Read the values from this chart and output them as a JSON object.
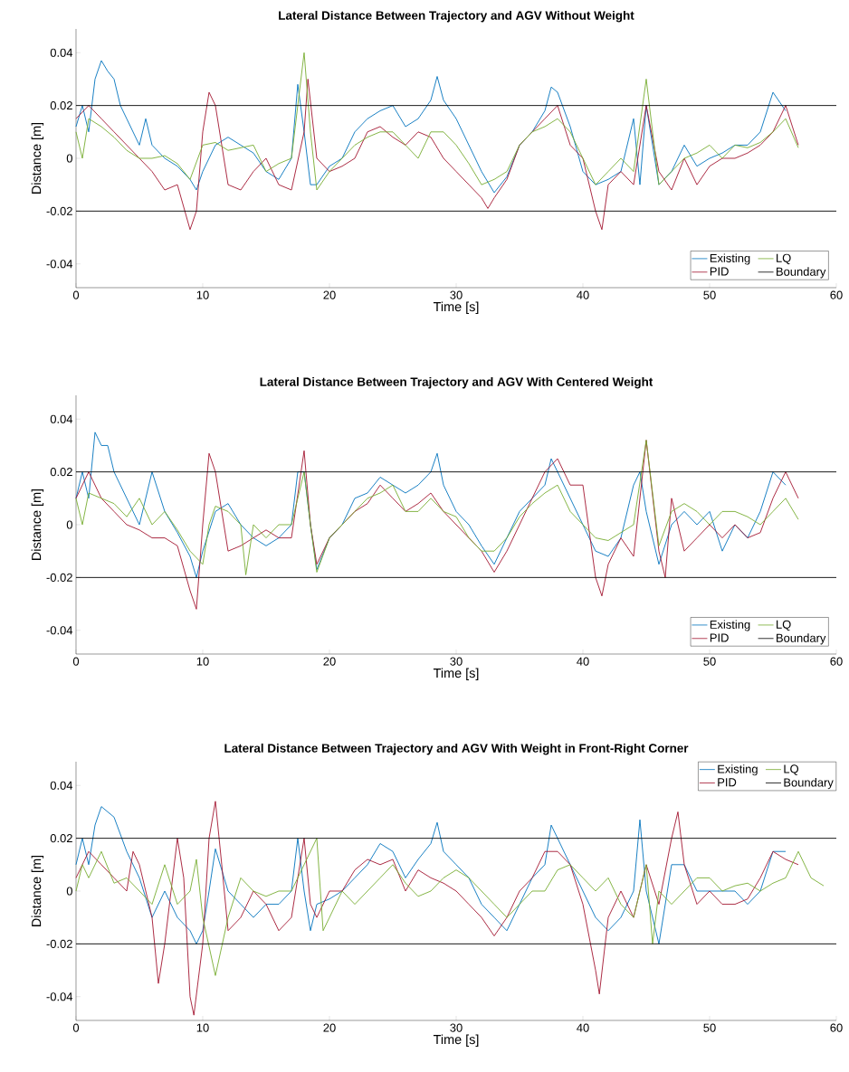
{
  "chart_data": [
    {
      "type": "line",
      "title": "Lateral Distance Between Trajectory and AGV Without Weight",
      "ref_lines": [
        {
          "axis": "y",
          "value": 0.02,
          "label": "Boundary",
          "color": "#000000"
        },
        {
          "axis": "y",
          "value": -0.02,
          "color": "#000000"
        }
      ],
      "xlabel": "Time [s]",
      "ylabel": "Distance [m]",
      "xlim": [
        0,
        60
      ],
      "ylim": [
        -0.049,
        0.049
      ],
      "xticks": [
        0,
        10,
        20,
        30,
        40,
        50,
        60
      ],
      "yticks": [
        -0.04,
        -0.02,
        0,
        0.02,
        0.04
      ],
      "legend": "bottom right",
      "series": [
        {
          "name": "Existing",
          "color": "#0072bd",
          "x": [
            0,
            0.5,
            1,
            1.5,
            2,
            2.5,
            3,
            3.5,
            4,
            5,
            5.5,
            6,
            7,
            8,
            9,
            9.5,
            10,
            11,
            12,
            13,
            14,
            15,
            16,
            17,
            17.5,
            18,
            18.5,
            19,
            20,
            21,
            22,
            23,
            24,
            25,
            26,
            27,
            28,
            28.5,
            29,
            30,
            31,
            32,
            33,
            34,
            35,
            36,
            37,
            37.5,
            38,
            39,
            40,
            41,
            42,
            43,
            44,
            44.5,
            45,
            46,
            47,
            48,
            49,
            50,
            51,
            52,
            53,
            54,
            55,
            56
          ],
          "values": [
            0.012,
            0.02,
            0.01,
            0.03,
            0.037,
            0.033,
            0.03,
            0.02,
            0.015,
            0.005,
            0.015,
            0.005,
            0.0,
            -0.003,
            -0.008,
            -0.012,
            -0.005,
            0.005,
            0.008,
            0.005,
            0.002,
            -0.005,
            -0.008,
            0.0,
            0.028,
            0.01,
            -0.01,
            -0.01,
            -0.003,
            0.0,
            0.01,
            0.015,
            0.018,
            0.02,
            0.012,
            0.015,
            0.022,
            0.031,
            0.022,
            0.015,
            0.005,
            -0.005,
            -0.013,
            -0.007,
            0.005,
            0.01,
            0.018,
            0.027,
            0.025,
            0.012,
            -0.005,
            -0.01,
            -0.008,
            -0.005,
            0.015,
            -0.01,
            0.02,
            -0.01,
            -0.005,
            0.005,
            -0.003,
            0.0,
            0.002,
            0.005,
            0.005,
            0.01,
            0.025,
            0.018
          ]
        },
        {
          "name": "PID",
          "color": "#a2142f",
          "x": [
            0,
            1,
            2,
            3,
            4,
            5,
            6,
            7,
            8,
            9,
            9.5,
            10,
            10.5,
            11,
            12,
            13,
            14,
            15,
            16,
            17,
            18,
            18.3,
            19,
            20,
            21,
            22,
            23,
            24,
            25,
            26,
            27,
            28,
            29,
            30,
            31,
            32,
            32.5,
            33,
            34,
            35,
            36,
            37,
            38,
            39,
            40,
            41,
            41.5,
            42,
            43,
            44,
            45,
            46,
            47,
            48,
            49,
            50,
            51,
            52,
            53,
            54,
            55,
            56,
            57
          ],
          "values": [
            0.015,
            0.02,
            0.015,
            0.01,
            0.005,
            0.0,
            -0.005,
            -0.012,
            -0.01,
            -0.027,
            -0.02,
            0.01,
            0.025,
            0.02,
            -0.01,
            -0.012,
            -0.005,
            0.0,
            -0.01,
            -0.012,
            0.01,
            0.03,
            0.0,
            -0.005,
            -0.003,
            0.0,
            0.01,
            0.012,
            0.008,
            0.005,
            0.01,
            0.008,
            0.0,
            -0.005,
            -0.01,
            -0.015,
            -0.019,
            -0.015,
            -0.008,
            0.005,
            0.01,
            0.015,
            0.02,
            0.005,
            0.0,
            -0.02,
            -0.027,
            -0.01,
            -0.005,
            -0.01,
            0.02,
            -0.005,
            -0.012,
            0.0,
            -0.01,
            -0.003,
            0.0,
            0.0,
            0.002,
            0.005,
            0.01,
            0.02,
            0.005
          ]
        },
        {
          "name": "LQ",
          "color": "#77ac30",
          "x": [
            0,
            0.5,
            1,
            2,
            3,
            4,
            5,
            6,
            7,
            8,
            9,
            10,
            11,
            12,
            13,
            14,
            15,
            16,
            17,
            18,
            18.5,
            19,
            20,
            21,
            22,
            23,
            24,
            25,
            26,
            27,
            28,
            29,
            30,
            31,
            32,
            33,
            34,
            35,
            36,
            37,
            38,
            39,
            40,
            41,
            42,
            43,
            44,
            45,
            46,
            47,
            48,
            49,
            50,
            51,
            52,
            53,
            54,
            55,
            56,
            57
          ],
          "values": [
            0.01,
            0.0,
            0.015,
            0.012,
            0.008,
            0.003,
            0.0,
            0.0,
            0.001,
            -0.002,
            -0.008,
            0.005,
            0.006,
            0.003,
            0.004,
            0.005,
            -0.005,
            -0.002,
            0.0,
            0.04,
            0.01,
            -0.012,
            -0.005,
            0.0,
            0.005,
            0.008,
            0.01,
            0.01,
            0.005,
            0.0,
            0.01,
            0.01,
            0.005,
            -0.002,
            -0.01,
            -0.008,
            -0.005,
            0.005,
            0.01,
            0.012,
            0.015,
            0.01,
            0.0,
            -0.01,
            -0.005,
            0.0,
            -0.005,
            0.03,
            -0.01,
            -0.005,
            0.0,
            0.002,
            0.005,
            0.0,
            0.005,
            0.004,
            0.006,
            0.01,
            0.015,
            0.004
          ]
        }
      ]
    },
    {
      "type": "line",
      "title": "Lateral Distance Between Trajectory and AGV With Centered Weight",
      "ref_lines": [
        {
          "axis": "y",
          "value": 0.02,
          "label": "Boundary",
          "color": "#000000"
        },
        {
          "axis": "y",
          "value": -0.02,
          "color": "#000000"
        }
      ],
      "xlabel": "Time [s]",
      "ylabel": "Distance [m]",
      "xlim": [
        0,
        60
      ],
      "ylim": [
        -0.049,
        0.049
      ],
      "xticks": [
        0,
        10,
        20,
        30,
        40,
        50,
        60
      ],
      "yticks": [
        -0.04,
        -0.02,
        0,
        0.02,
        0.04
      ],
      "legend": "bottom right",
      "series": [
        {
          "name": "Existing",
          "color": "#0072bd",
          "x": [
            0,
            0.5,
            1,
            1.5,
            2,
            2.5,
            3,
            4,
            5,
            6,
            7,
            8,
            9,
            9.5,
            10,
            11,
            12,
            13,
            14,
            15,
            16,
            17,
            17.5,
            18,
            18.5,
            19,
            20,
            21,
            22,
            23,
            24,
            25,
            26,
            27,
            28,
            28.5,
            29,
            30,
            31,
            32,
            33,
            34,
            35,
            36,
            37,
            37.5,
            38,
            39,
            40,
            41,
            42,
            43,
            44,
            44.5,
            45,
            46,
            47,
            48,
            49,
            50,
            51,
            52,
            53,
            54,
            55,
            56
          ],
          "values": [
            0.01,
            0.02,
            0.01,
            0.035,
            0.03,
            0.03,
            0.02,
            0.01,
            0.0,
            0.02,
            0.005,
            -0.003,
            -0.012,
            -0.02,
            -0.01,
            0.005,
            0.008,
            0.0,
            -0.005,
            -0.008,
            -0.005,
            0.0,
            0.02,
            0.02,
            0.0,
            -0.017,
            -0.005,
            0.0,
            0.01,
            0.012,
            0.018,
            0.015,
            0.012,
            0.015,
            0.02,
            0.027,
            0.015,
            0.005,
            0.0,
            -0.008,
            -0.015,
            -0.005,
            0.005,
            0.01,
            0.015,
            0.025,
            0.02,
            0.01,
            0.0,
            -0.01,
            -0.012,
            -0.005,
            0.015,
            0.02,
            0.005,
            -0.015,
            0.0,
            0.005,
            0.0,
            0.005,
            -0.01,
            0.0,
            -0.005,
            0.005,
            0.02,
            0.015
          ]
        },
        {
          "name": "PID",
          "color": "#a2142f",
          "x": [
            0,
            1,
            2,
            3,
            4,
            5,
            6,
            7,
            8,
            9,
            9.5,
            10,
            10.5,
            11,
            12,
            13,
            14,
            15,
            16,
            17,
            18,
            18.5,
            19,
            20,
            21,
            22,
            23,
            24,
            25,
            26,
            27,
            28,
            29,
            30,
            31,
            32,
            33,
            34,
            35,
            36,
            37,
            38,
            39,
            40,
            41,
            41.5,
            42,
            43,
            44,
            45,
            46,
            46.5,
            47,
            48,
            49,
            50,
            51,
            52,
            53,
            54,
            55,
            56,
            57
          ],
          "values": [
            0.01,
            0.02,
            0.01,
            0.005,
            0.0,
            -0.002,
            -0.005,
            -0.005,
            -0.008,
            -0.025,
            -0.032,
            0.0,
            0.027,
            0.02,
            -0.01,
            -0.008,
            -0.005,
            -0.002,
            -0.005,
            -0.005,
            0.028,
            0.0,
            -0.015,
            -0.005,
            0.0,
            0.005,
            0.008,
            0.015,
            0.01,
            0.005,
            0.008,
            0.012,
            0.005,
            0.0,
            -0.005,
            -0.01,
            -0.018,
            -0.01,
            0.0,
            0.01,
            0.02,
            0.025,
            0.015,
            0.015,
            -0.02,
            -0.027,
            -0.015,
            -0.005,
            -0.012,
            0.032,
            -0.01,
            -0.02,
            0.01,
            -0.01,
            -0.005,
            0.0,
            -0.005,
            0.0,
            -0.005,
            -0.003,
            0.01,
            0.02,
            0.01
          ]
        },
        {
          "name": "LQ",
          "color": "#77ac30",
          "x": [
            0,
            0.5,
            1,
            2,
            3,
            4,
            5,
            6,
            7,
            8,
            9,
            10,
            10.5,
            11,
            12,
            13,
            13.4,
            14,
            15,
            16,
            17,
            18,
            18.5,
            19,
            20,
            21,
            22,
            23,
            24,
            25,
            26,
            27,
            28,
            29,
            30,
            31,
            32,
            33,
            34,
            35,
            36,
            37,
            38,
            39,
            40,
            41,
            42,
            43,
            44,
            45,
            46,
            47,
            48,
            49,
            50,
            51,
            52,
            53,
            54,
            55,
            56,
            57
          ],
          "values": [
            0.01,
            0.0,
            0.012,
            0.01,
            0.008,
            0.003,
            0.01,
            0.0,
            0.005,
            -0.002,
            -0.01,
            -0.015,
            0.0,
            0.007,
            0.005,
            0.0,
            -0.019,
            0.0,
            -0.005,
            0.0,
            0.0,
            0.02,
            0.0,
            -0.018,
            -0.005,
            0.0,
            0.005,
            0.01,
            0.012,
            0.015,
            0.005,
            0.005,
            0.01,
            0.005,
            0.003,
            -0.005,
            -0.01,
            -0.01,
            -0.005,
            0.003,
            0.008,
            0.012,
            0.015,
            0.005,
            0.0,
            -0.005,
            -0.006,
            -0.003,
            0.0,
            0.032,
            -0.008,
            0.005,
            0.008,
            0.005,
            0.0,
            0.005,
            0.005,
            0.003,
            0.0,
            0.005,
            0.01,
            0.002
          ]
        }
      ]
    },
    {
      "type": "line",
      "title": "Lateral Distance Between Trajectory and AGV With Weight in Front-Right Corner",
      "ref_lines": [
        {
          "axis": "y",
          "value": 0.02,
          "label": "Boundary",
          "color": "#000000"
        },
        {
          "axis": "y",
          "value": -0.02,
          "color": "#000000"
        }
      ],
      "xlabel": "Time [s]",
      "ylabel": "Distance [m]",
      "xlim": [
        0,
        60
      ],
      "ylim": [
        -0.049,
        0.049
      ],
      "xticks": [
        0,
        10,
        20,
        30,
        40,
        50,
        60
      ],
      "yticks": [
        -0.04,
        -0.02,
        0,
        0.02,
        0.04
      ],
      "legend": "top right",
      "series": [
        {
          "name": "Existing",
          "color": "#0072bd",
          "x": [
            0,
            0.5,
            1,
            1.5,
            2,
            2.5,
            3,
            4,
            5,
            6,
            7,
            8,
            9,
            9.5,
            10,
            10.5,
            11,
            12,
            13,
            14,
            15,
            16,
            17,
            17.5,
            18,
            18.5,
            19,
            20,
            21,
            22,
            23,
            24,
            25,
            26,
            27,
            28,
            28.5,
            29,
            30,
            31,
            32,
            33,
            34,
            35,
            36,
            37,
            37.5,
            38,
            39,
            40,
            41,
            42,
            43,
            44,
            44.5,
            45,
            46,
            47,
            48,
            49,
            50,
            51,
            52,
            53,
            54,
            55,
            56
          ],
          "values": [
            0.01,
            0.02,
            0.01,
            0.025,
            0.032,
            0.03,
            0.028,
            0.015,
            0.005,
            -0.01,
            0.0,
            -0.01,
            -0.015,
            -0.02,
            -0.015,
            0.0,
            0.016,
            0.0,
            -0.005,
            -0.01,
            -0.005,
            -0.005,
            0.0,
            0.02,
            0.0,
            -0.015,
            -0.005,
            -0.003,
            0.0,
            0.005,
            0.01,
            0.018,
            0.015,
            0.005,
            0.012,
            0.018,
            0.026,
            0.015,
            0.01,
            0.005,
            -0.005,
            -0.01,
            -0.015,
            -0.005,
            0.005,
            0.01,
            0.025,
            0.02,
            0.01,
            0.0,
            -0.01,
            -0.015,
            -0.01,
            0.0,
            0.027,
            0.0,
            -0.02,
            0.01,
            0.01,
            0.0,
            0.0,
            0.0,
            0.0,
            -0.005,
            0.0,
            0.015,
            0.015
          ]
        },
        {
          "name": "PID",
          "color": "#a2142f",
          "x": [
            0,
            1,
            2,
            3,
            4,
            4.5,
            5,
            6,
            6.5,
            7,
            8,
            8.5,
            9,
            9.3,
            10,
            10.5,
            11,
            11.5,
            12,
            13,
            14,
            15,
            16,
            17,
            18,
            18.5,
            19,
            20,
            21,
            22,
            23,
            24,
            25,
            26,
            27,
            28,
            29,
            30,
            31,
            32,
            33,
            34,
            35,
            36,
            37,
            38,
            39,
            40,
            41,
            41.3,
            42,
            43,
            44,
            45,
            46,
            47,
            47.5,
            48,
            49,
            50,
            51,
            52,
            53,
            54,
            55,
            56,
            57
          ],
          "values": [
            0.005,
            0.015,
            0.01,
            0.005,
            0.0,
            0.015,
            0.01,
            -0.01,
            -0.035,
            -0.02,
            0.02,
            0.005,
            -0.04,
            -0.047,
            -0.02,
            0.02,
            0.034,
            0.01,
            -0.015,
            -0.01,
            0.0,
            -0.005,
            -0.015,
            -0.01,
            0.02,
            -0.005,
            -0.01,
            0.0,
            0.0,
            0.008,
            0.012,
            0.01,
            0.012,
            0.0,
            0.008,
            0.005,
            0.003,
            0.0,
            -0.005,
            -0.01,
            -0.017,
            -0.01,
            0.0,
            0.005,
            0.015,
            0.015,
            0.01,
            -0.005,
            -0.03,
            -0.039,
            -0.01,
            0.0,
            -0.01,
            0.01,
            -0.005,
            0.02,
            0.03,
            0.01,
            -0.005,
            0.0,
            -0.005,
            -0.005,
            -0.003,
            0.005,
            0.015,
            0.012,
            0.01
          ]
        },
        {
          "name": "LQ",
          "color": "#77ac30",
          "x": [
            0,
            0.5,
            1,
            2,
            3,
            4,
            5,
            6,
            7,
            8,
            9,
            9.5,
            10,
            11,
            12,
            13,
            14,
            15,
            16,
            17,
            18,
            19,
            19.5,
            20,
            21,
            22,
            23,
            24,
            25,
            26,
            27,
            28,
            29,
            30,
            31,
            32,
            33,
            34,
            35,
            36,
            37,
            38,
            39,
            40,
            41,
            42,
            43,
            44,
            45,
            45.5,
            46,
            47,
            48,
            49,
            50,
            51,
            52,
            53,
            54,
            55,
            56,
            57,
            58,
            59
          ],
          "values": [
            0.0,
            0.01,
            0.005,
            0.015,
            0.003,
            0.005,
            0.0,
            -0.005,
            0.01,
            -0.005,
            0.0,
            0.012,
            -0.01,
            -0.032,
            -0.01,
            0.005,
            0.0,
            -0.002,
            0.0,
            0.0,
            0.01,
            0.02,
            -0.015,
            -0.01,
            0.0,
            -0.005,
            0.0,
            0.005,
            0.01,
            0.003,
            -0.002,
            0.0,
            0.005,
            0.008,
            0.005,
            0.0,
            -0.005,
            -0.01,
            -0.005,
            0.0,
            0.0,
            0.008,
            0.01,
            0.005,
            0.0,
            0.005,
            -0.005,
            -0.01,
            0.01,
            -0.02,
            0.0,
            -0.005,
            0.0,
            0.005,
            0.005,
            0.0,
            0.002,
            0.003,
            0.0,
            0.003,
            0.005,
            0.015,
            0.005,
            0.002
          ]
        }
      ]
    }
  ]
}
